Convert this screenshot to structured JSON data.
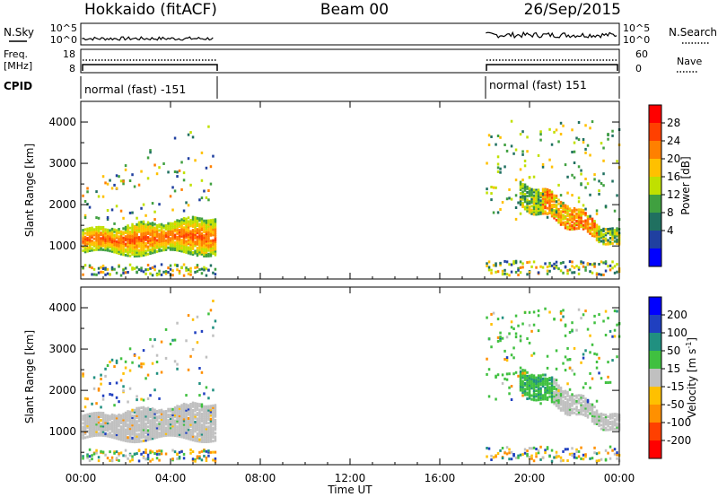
{
  "header": {
    "station": "Hokkaido (fitACF)",
    "beam": "Beam 00",
    "date": "26/Sep/2015"
  },
  "noise_panel": {
    "left_label": "N.Sky",
    "right_label": "N.Search",
    "ticks": [
      "10^5",
      "10^0"
    ]
  },
  "freq_panel": {
    "left_label_1": "Freq.",
    "left_label_2": "[MHz]",
    "left_ticks": [
      "18",
      "8"
    ],
    "right_label": "Nave",
    "right_ticks": [
      "60",
      "0"
    ]
  },
  "cpid_panel": {
    "label": "CPID",
    "segments": [
      {
        "text": "normal (fast) -151",
        "start": "00:00",
        "end": "06:00"
      },
      {
        "text": "normal (fast) 151",
        "start": "18:00",
        "end": "24:00"
      }
    ]
  },
  "x_axis": {
    "label": "Time UT",
    "ticks": [
      "00:00",
      "04:00",
      "08:00",
      "12:00",
      "16:00",
      "20:00",
      "00:00"
    ]
  },
  "power_colorbar": {
    "label": "Power [dB]",
    "ticks": [
      "28",
      "24",
      "20",
      "16",
      "12",
      "8",
      "4"
    ],
    "colors": [
      "#ff0000",
      "#ff4000",
      "#ff8000",
      "#ffc000",
      "#c0e000",
      "#40a040",
      "#207060",
      "#2040a0",
      "#0000ff"
    ]
  },
  "velocity_colorbar": {
    "label": "Velocity [m s",
    "label_sup": "-1",
    "label_end": "]",
    "ticks": [
      "200",
      "100",
      "50",
      "15",
      "-15",
      "-50",
      "-100",
      "-200"
    ],
    "colors": [
      "#0000ff",
      "#2040c0",
      "#209080",
      "#40c040",
      "#c0c0c0",
      "#ffc000",
      "#ff9000",
      "#ff4000",
      "#ff0000"
    ]
  },
  "chart_data": [
    {
      "type": "heatmap",
      "panel": "power",
      "ylabel": "Slant Range [km]",
      "yticks": [
        "1000",
        "2000",
        "3000",
        "4000"
      ],
      "ylim": [
        200,
        4500
      ],
      "xlim": [
        0,
        24
      ],
      "data_windows_hours": [
        [
          0,
          6
        ],
        [
          18,
          24
        ]
      ],
      "features": [
        {
          "x_range": [
            0,
            6
          ],
          "y_range": [
            800,
            1700
          ],
          "level_db": 24
        },
        {
          "x_range": [
            18,
            24
          ],
          "y_range": [
            800,
            2400
          ],
          "level_db": 20
        },
        {
          "x_range": [
            18,
            24
          ],
          "y_range": [
            2000,
            4000
          ],
          "level_db": 10
        }
      ]
    },
    {
      "type": "heatmap",
      "panel": "velocity",
      "ylabel": "Slant Range [km]",
      "yticks": [
        "1000",
        "2000",
        "3000",
        "4000"
      ],
      "ylim": [
        200,
        4500
      ],
      "xlim": [
        0,
        24
      ],
      "data_windows_hours": [
        [
          0,
          6
        ],
        [
          18,
          24
        ]
      ],
      "features": [
        {
          "x_range": [
            0,
            6
          ],
          "y_range": [
            800,
            1700
          ],
          "velocity_ms": 0
        },
        {
          "x_range": [
            18,
            24
          ],
          "y_range": [
            900,
            2100
          ],
          "velocity_ms": 0
        },
        {
          "x_range": [
            18,
            24
          ],
          "y_range": [
            1500,
            2600
          ],
          "velocity_ms": 30
        }
      ]
    }
  ]
}
